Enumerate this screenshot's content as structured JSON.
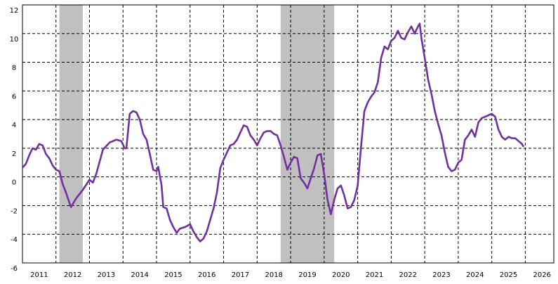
{
  "chart_data": {
    "type": "line",
    "x": [
      2011.0,
      2011.1,
      2011.2,
      2011.3,
      2011.4,
      2011.5,
      2011.6,
      2011.7,
      2011.8,
      2011.9,
      2012.0,
      2012.1,
      2012.2,
      2012.3,
      2012.4,
      2012.45,
      2012.6,
      2012.8,
      2013.0,
      2013.1,
      2013.2,
      2013.4,
      2013.6,
      2013.8,
      2013.95,
      2014.05,
      2014.1,
      2014.2,
      2014.3,
      2014.4,
      2014.5,
      2014.6,
      2014.7,
      2014.8,
      2014.9,
      2015.0,
      2015.05,
      2015.15,
      2015.2,
      2015.3,
      2015.4,
      2015.5,
      2015.6,
      2015.7,
      2015.85,
      2016.0,
      2016.1,
      2016.2,
      2016.3,
      2016.4,
      2016.5,
      2016.6,
      2016.7,
      2016.8,
      2016.9,
      2017.0,
      2017.1,
      2017.2,
      2017.3,
      2017.4,
      2017.5,
      2017.6,
      2017.7,
      2017.8,
      2017.9,
      2018.0,
      2018.1,
      2018.2,
      2018.3,
      2018.4,
      2018.5,
      2018.6,
      2018.7,
      2018.8,
      2018.9,
      2019.0,
      2019.1,
      2019.2,
      2019.3,
      2019.4,
      2019.5,
      2019.6,
      2019.7,
      2019.8,
      2019.9,
      2020.0,
      2020.1,
      2020.2,
      2020.3,
      2020.4,
      2020.5,
      2020.6,
      2020.7,
      2020.8,
      2020.9,
      2021.0,
      2021.1,
      2021.2,
      2021.3,
      2021.4,
      2021.5,
      2021.6,
      2021.7,
      2021.8,
      2021.9,
      2022.0,
      2022.1,
      2022.2,
      2022.3,
      2022.4,
      2022.5,
      2022.6,
      2022.7,
      2022.8,
      2022.85,
      2022.9,
      2023.0,
      2023.1,
      2023.2,
      2023.3,
      2023.4,
      2023.5,
      2023.6,
      2023.7,
      2023.8,
      2023.9,
      2024.0,
      2024.1,
      2024.2,
      2024.3,
      2024.4,
      2024.5,
      2024.6,
      2024.7,
      2024.8,
      2024.9,
      2025.0,
      2025.1,
      2025.2,
      2025.3,
      2025.4,
      2025.5,
      2025.6,
      2025.7,
      2025.8,
      2025.9,
      2025.95
    ],
    "series": [
      {
        "color": "#7030a0",
        "values": [
          0.65,
          0.9,
          1.5,
          2.0,
          1.9,
          2.3,
          2.2,
          1.6,
          1.3,
          0.8,
          0.5,
          0.4,
          -0.5,
          -1.1,
          -1.8,
          -2.1,
          -1.5,
          -0.9,
          -0.2,
          -0.4,
          0.2,
          1.9,
          2.4,
          2.6,
          2.5,
          2.0,
          2.0,
          4.4,
          4.6,
          4.5,
          4.0,
          3.0,
          2.6,
          1.6,
          0.5,
          0.4,
          0.7,
          -0.6,
          -2.1,
          -2.2,
          -3.0,
          -3.5,
          -3.9,
          -3.6,
          -3.5,
          -3.3,
          -3.8,
          -4.2,
          -4.5,
          -4.3,
          -3.8,
          -3.0,
          -2.2,
          -1.1,
          0.6,
          1.2,
          1.7,
          2.2,
          2.3,
          2.6,
          3.1,
          3.6,
          3.5,
          2.9,
          2.6,
          2.2,
          2.7,
          3.1,
          3.2,
          3.2,
          3.0,
          2.9,
          2.2,
          1.4,
          0.5,
          1.0,
          1.4,
          1.3,
          -0.1,
          -0.4,
          -0.8,
          -0.1,
          0.6,
          1.5,
          1.6,
          0.2,
          -1.6,
          -2.6,
          -1.6,
          -0.8,
          -0.6,
          -1.3,
          -2.2,
          -2.1,
          -1.6,
          -0.6,
          2.1,
          4.6,
          5.2,
          5.6,
          5.9,
          6.6,
          8.3,
          9.1,
          8.9,
          9.5,
          9.7,
          10.2,
          9.7,
          9.6,
          10.1,
          10.5,
          10.0,
          10.5,
          10.7,
          9.7,
          8.3,
          6.8,
          5.8,
          4.6,
          3.7,
          2.9,
          1.7,
          0.7,
          0.4,
          0.5,
          1.0,
          1.2,
          2.6,
          2.9,
          3.3,
          2.8,
          3.8,
          4.1,
          4.2,
          4.3,
          4.4,
          4.2,
          3.3,
          2.8,
          2.6,
          2.8,
          2.7,
          2.7,
          2.5,
          2.3,
          2.1
        ]
      }
    ],
    "shaded_ranges": [
      [
        2012.1,
        2012.8
      ],
      [
        2018.7,
        2020.3
      ]
    ],
    "xlim": [
      2011,
      2026.85
    ],
    "xticks": [
      2011,
      2012,
      2013,
      2014,
      2015,
      2016,
      2017,
      2018,
      2019,
      2020,
      2021,
      2022,
      2023,
      2024,
      2025,
      2026
    ],
    "ylim": [
      -6,
      12
    ],
    "yticks": [
      -6,
      -4,
      -2,
      0,
      2,
      4,
      6,
      8,
      10,
      12
    ],
    "grid": true
  }
}
